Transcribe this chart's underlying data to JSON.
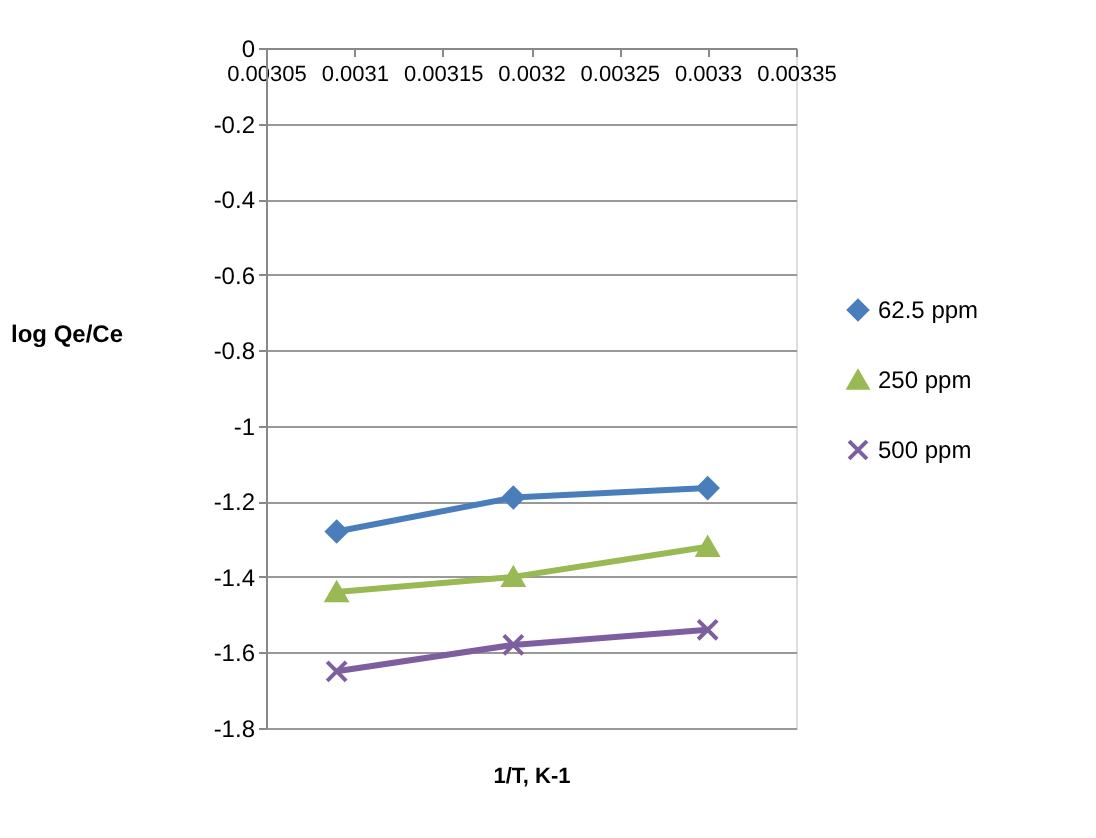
{
  "chart_data": {
    "type": "line",
    "xlabel": "1/T, K-1",
    "ylabel": "log Qe/Ce",
    "x": [
      0.00309,
      0.00319,
      0.0033
    ],
    "series": [
      {
        "name": "62.5 ppm",
        "color": "#4a7ebb",
        "marker": "diamond",
        "values": [
          -1.28,
          -1.19,
          -1.165
        ]
      },
      {
        "name": "250 ppm",
        "color": "#98b954",
        "marker": "triangle",
        "values": [
          -1.44,
          -1.4,
          -1.32
        ]
      },
      {
        "name": "500 ppm",
        "color": "#7d5fa0",
        "marker": "cross",
        "values": [
          -1.65,
          -1.58,
          -1.54
        ]
      }
    ],
    "xlim": [
      0.00305,
      0.00335
    ],
    "xticks": [
      0.00305,
      0.0031,
      0.00315,
      0.0032,
      0.00325,
      0.0033,
      0.00335
    ],
    "ylim": [
      -1.8,
      0
    ],
    "yticks": [
      -1.8,
      -1.6,
      -1.4,
      -1.2,
      -1,
      -0.8,
      -0.6,
      -0.4,
      -0.2,
      0
    ],
    "grid": "y",
    "legend": "right",
    "line_style": "solid"
  }
}
